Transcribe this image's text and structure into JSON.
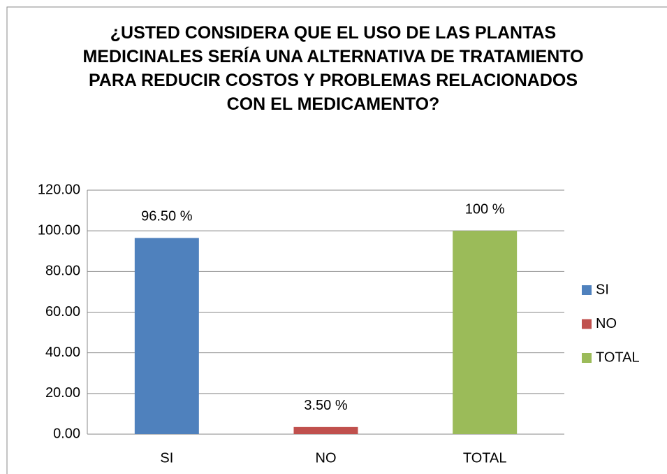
{
  "chart_data": {
    "type": "bar",
    "title": "¿USTED CONSIDERA QUE EL USO DE LAS PLANTAS MEDICINALES SERÍA UNA ALTERNATIVA DE TRATAMIENTO PARA REDUCIR COSTOS Y PROBLEMAS RELACIONADOS CON EL MEDICAMENTO?",
    "categories": [
      "SI",
      "NO",
      "TOTAL"
    ],
    "values": [
      96.5,
      3.5,
      100
    ],
    "value_labels": [
      "96.50 %",
      "3.50 %",
      "100 %"
    ],
    "colors": [
      "#4f81bd",
      "#c0504d",
      "#9bbb59"
    ],
    "ylim": [
      0,
      120
    ],
    "yticks": [
      {
        "value": 0,
        "label": "0.00"
      },
      {
        "value": 20,
        "label": "20.00"
      },
      {
        "value": 40,
        "label": "40.00"
      },
      {
        "value": 60,
        "label": "60.00"
      },
      {
        "value": 80,
        "label": "80.00"
      },
      {
        "value": 100,
        "label": "100.00"
      },
      {
        "value": 120,
        "label": "120.00"
      }
    ],
    "grid": true,
    "legend": "right"
  }
}
